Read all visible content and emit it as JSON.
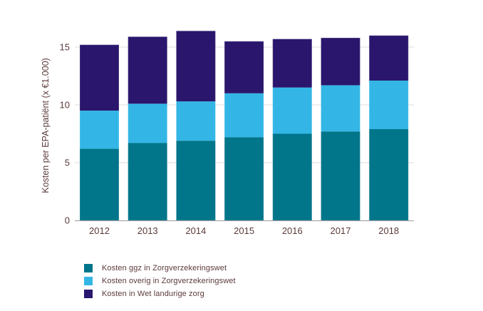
{
  "chart_data": {
    "type": "bar",
    "stacked": true,
    "title": "",
    "xlabel": "",
    "ylabel": "Kosten per EPA-patiënt (x €1.000)",
    "categories": [
      "2012",
      "2013",
      "2014",
      "2015",
      "2016",
      "2017",
      "2018"
    ],
    "ylim": [
      0,
      17
    ],
    "yticks": [
      0,
      5,
      10,
      15
    ],
    "ytick_labels": [
      "0",
      "5",
      "10",
      "15"
    ],
    "grid": true,
    "legend_position": "bottom-left",
    "series": [
      {
        "name": "Kosten ggz in Zorgverzekeringswet",
        "color": "#01758a",
        "values": [
          6.2,
          6.7,
          6.9,
          7.2,
          7.5,
          7.7,
          7.9
        ]
      },
      {
        "name": "Kosten overig in Zorgverzekeringswet",
        "color": "#33b6e5",
        "values": [
          3.3,
          3.4,
          3.4,
          3.8,
          4.0,
          4.0,
          4.2
        ]
      },
      {
        "name": "Kosten in Wet landurige zorg",
        "color": "#2a166c",
        "values": [
          5.7,
          5.8,
          6.1,
          4.5,
          4.2,
          4.1,
          3.9
        ]
      }
    ],
    "totals": [
      15.2,
      15.9,
      16.4,
      15.5,
      15.7,
      15.8,
      16.0
    ]
  },
  "legend": {
    "items": [
      {
        "label": "Kosten ggz in Zorgverzekeringswet",
        "color": "#01758a"
      },
      {
        "label": "Kosten overig in Zorgverzekeringswet",
        "color": "#33b6e5"
      },
      {
        "label": "Kosten in Wet landurige zorg",
        "color": "#2a166c"
      }
    ]
  }
}
